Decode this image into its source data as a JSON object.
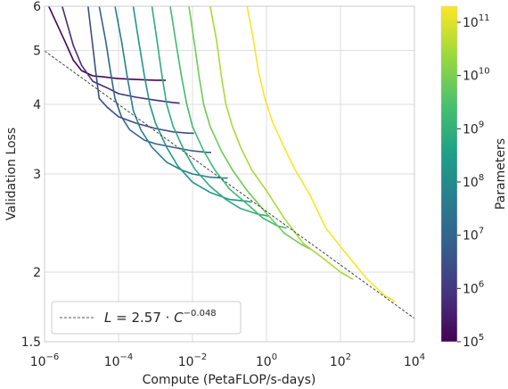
{
  "chart_data": {
    "type": "line",
    "title": "",
    "xlabel": "Compute (PetaFLOP/s-days)",
    "ylabel": "Validation Loss",
    "x_scale": "log",
    "y_scale": "log",
    "xlim": [
      1e-06,
      10000
    ],
    "ylim": [
      1.5,
      6
    ],
    "grid": true,
    "x_ticks": [
      {
        "base": "10",
        "exp": "−6"
      },
      {
        "base": "10",
        "exp": "−4"
      },
      {
        "base": "10",
        "exp": "−2"
      },
      {
        "base": "10",
        "exp": "0"
      },
      {
        "base": "10",
        "exp": "2"
      },
      {
        "base": "10",
        "exp": "4"
      }
    ],
    "y_ticks": [
      "1.5",
      "2",
      "3",
      "4",
      "5",
      "6"
    ],
    "fit": {
      "label": "L = 2.57 · C^−0.048",
      "label_parts": {
        "lhs": "L",
        "eq": " = 2.57 · ",
        "base": "C",
        "exp": "−0.048"
      },
      "coef": 2.57,
      "exponent": -0.048,
      "legend_position": "lower-left"
    },
    "colorbar": {
      "label": "Parameters",
      "scale": "log",
      "colormap": "viridis",
      "range": [
        100000,
        200000000000
      ],
      "ticks": [
        {
          "base": "10",
          "exp": "5"
        },
        {
          "base": "10",
          "exp": "6"
        },
        {
          "base": "10",
          "exp": "7"
        },
        {
          "base": "10",
          "exp": "8"
        },
        {
          "base": "10",
          "exp": "9"
        },
        {
          "base": "10",
          "exp": "10"
        },
        {
          "base": "10",
          "exp": "11"
        }
      ]
    },
    "series": [
      {
        "params": 120000,
        "points": [
          [
            1.3e-06,
            6.0
          ],
          [
            3.5e-06,
            5.2
          ],
          [
            6e-06,
            4.8
          ],
          [
            1e-05,
            4.6
          ],
          [
            2e-05,
            4.5
          ],
          [
            4e-05,
            4.48
          ],
          [
            0.0001,
            4.45
          ],
          [
            0.0004,
            4.43
          ],
          [
            0.001,
            4.42
          ],
          [
            0.0019,
            4.42
          ]
        ]
      },
      {
        "params": 700000,
        "points": [
          [
            3e-06,
            6.0
          ],
          [
            6e-06,
            5.1
          ],
          [
            1e-05,
            4.7
          ],
          [
            2e-05,
            4.4
          ],
          [
            5e-05,
            4.28
          ],
          [
            0.0001,
            4.18
          ],
          [
            0.0003,
            4.12
          ],
          [
            0.001,
            4.07
          ],
          [
            0.003,
            4.03
          ],
          [
            0.0045,
            4.02
          ]
        ]
      },
      {
        "params": 3000000,
        "points": [
          [
            1.5e-05,
            6.0
          ],
          [
            2e-05,
            5.1
          ],
          [
            2.5e-05,
            4.5
          ],
          [
            3e-05,
            4.1
          ],
          [
            5e-05,
            3.95
          ],
          [
            0.0001,
            3.8
          ],
          [
            0.0003,
            3.7
          ],
          [
            0.001,
            3.62
          ],
          [
            0.003,
            3.57
          ],
          [
            0.008,
            3.55
          ],
          [
            0.011,
            3.55
          ]
        ]
      },
      {
        "params": 10000000,
        "points": [
          [
            3e-05,
            6.0
          ],
          [
            4.5e-05,
            5.2
          ],
          [
            6e-05,
            4.6
          ],
          [
            8e-05,
            4.1
          ],
          [
            0.00012,
            3.8
          ],
          [
            0.0002,
            3.6
          ],
          [
            0.0005,
            3.45
          ],
          [
            0.001,
            3.4
          ],
          [
            0.003,
            3.35
          ],
          [
            0.01,
            3.3
          ],
          [
            0.025,
            3.28
          ],
          [
            0.032,
            3.28
          ]
        ]
      },
      {
        "params": 50000000,
        "points": [
          [
            8e-05,
            6.0
          ],
          [
            0.00012,
            5.2
          ],
          [
            0.00017,
            4.5
          ],
          [
            0.00025,
            3.9
          ],
          [
            0.0004,
            3.6
          ],
          [
            0.0008,
            3.35
          ],
          [
            0.002,
            3.15
          ],
          [
            0.005,
            3.05
          ],
          [
            0.01,
            3.0
          ],
          [
            0.03,
            2.96
          ],
          [
            0.07,
            2.95
          ],
          [
            0.09,
            2.95
          ]
        ]
      },
      {
        "params": 200000000,
        "points": [
          [
            0.00025,
            6.0
          ],
          [
            0.00035,
            5.2
          ],
          [
            0.0005,
            4.5
          ],
          [
            0.0007,
            4.0
          ],
          [
            0.001,
            3.7
          ],
          [
            0.002,
            3.35
          ],
          [
            0.004,
            3.1
          ],
          [
            0.01,
            2.9
          ],
          [
            0.03,
            2.78
          ],
          [
            0.1,
            2.7
          ],
          [
            0.3,
            2.68
          ],
          [
            0.4,
            2.67
          ]
        ]
      },
      {
        "params": 800000000,
        "points": [
          [
            0.0008,
            6.0
          ],
          [
            0.0011,
            5.2
          ],
          [
            0.0015,
            4.5
          ],
          [
            0.002,
            4.0
          ],
          [
            0.003,
            3.65
          ],
          [
            0.006,
            3.3
          ],
          [
            0.012,
            3.05
          ],
          [
            0.03,
            2.85
          ],
          [
            0.08,
            2.7
          ],
          [
            0.2,
            2.6
          ],
          [
            0.6,
            2.54
          ],
          [
            1.2,
            2.52
          ]
        ]
      },
      {
        "params": 2000000000,
        "points": [
          [
            0.0025,
            6.0
          ],
          [
            0.0035,
            5.2
          ],
          [
            0.005,
            4.5
          ],
          [
            0.007,
            4.0
          ],
          [
            0.01,
            3.65
          ],
          [
            0.02,
            3.3
          ],
          [
            0.04,
            3.05
          ],
          [
            0.1,
            2.82
          ],
          [
            0.3,
            2.65
          ],
          [
            0.8,
            2.5
          ],
          [
            2,
            2.42
          ],
          [
            3.5,
            2.4
          ]
        ]
      },
      {
        "params": 8000000000,
        "points": [
          [
            0.008,
            6.0
          ],
          [
            0.011,
            5.2
          ],
          [
            0.015,
            4.5
          ],
          [
            0.02,
            4.0
          ],
          [
            0.03,
            3.65
          ],
          [
            0.06,
            3.3
          ],
          [
            0.12,
            3.05
          ],
          [
            0.3,
            2.8
          ],
          [
            1,
            2.55
          ],
          [
            3,
            2.35
          ],
          [
            8,
            2.25
          ],
          [
            15,
            2.2
          ]
        ]
      },
      {
        "params": 30000000000,
        "points": [
          [
            0.03,
            6.0
          ],
          [
            0.045,
            5.2
          ],
          [
            0.06,
            4.5
          ],
          [
            0.08,
            4.0
          ],
          [
            0.12,
            3.65
          ],
          [
            0.2,
            3.35
          ],
          [
            0.4,
            3.05
          ],
          [
            1,
            2.8
          ],
          [
            3,
            2.5
          ],
          [
            10,
            2.25
          ],
          [
            40,
            2.1
          ],
          [
            100,
            2.0
          ],
          [
            220,
            1.94
          ]
        ]
      },
      {
        "params": 175000000000,
        "points": [
          [
            0.3,
            6.0
          ],
          [
            0.45,
            5.2
          ],
          [
            0.6,
            4.6
          ],
          [
            0.9,
            4.1
          ],
          [
            1.5,
            3.7
          ],
          [
            3,
            3.35
          ],
          [
            6,
            3.05
          ],
          [
            15,
            2.75
          ],
          [
            40,
            2.4
          ],
          [
            150,
            2.15
          ],
          [
            500,
            1.95
          ],
          [
            1500,
            1.82
          ],
          [
            3000,
            1.77
          ]
        ]
      }
    ]
  }
}
